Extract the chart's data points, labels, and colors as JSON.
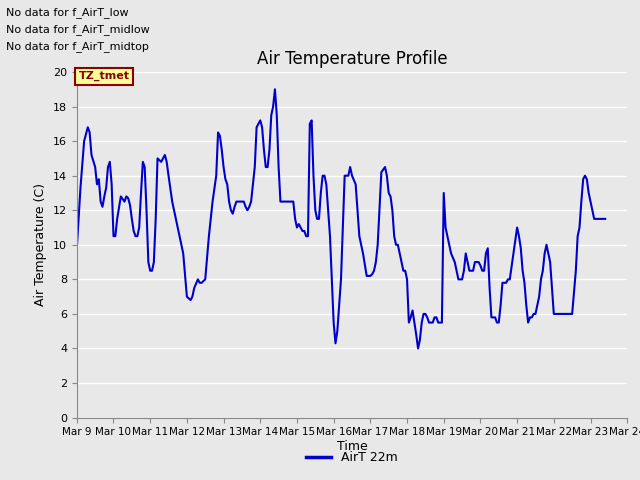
{
  "title": "Air Temperature Profile",
  "xlabel": "Time",
  "ylabel": "Air Temperature (C)",
  "ylim": [
    0,
    20
  ],
  "yticks": [
    0,
    2,
    4,
    6,
    8,
    10,
    12,
    14,
    16,
    18,
    20
  ],
  "line_color": "#0000CC",
  "line_width": 1.5,
  "background_color": "#E8E8E8",
  "plot_bg_color": "#E8E8E8",
  "annotations": [
    "No data for f_AirT_low",
    "No data for f_AirT_midlow",
    "No data for f_AirT_midtop"
  ],
  "legend_label": "AirT 22m",
  "tz_label": "TZ_tmet",
  "x_tick_labels": [
    "Mar 9",
    "Mar 10",
    "Mar 11",
    "Mar 12",
    "Mar 13",
    "Mar 14",
    "Mar 15",
    "Mar 16",
    "Mar 17",
    "Mar 18",
    "Mar 19",
    "Mar 20",
    "Mar 21",
    "Mar 22",
    "Mar 23",
    "Mar 24"
  ],
  "temperature_data": [
    [
      9.0,
      9.8
    ],
    [
      9.1,
      13.3
    ],
    [
      9.2,
      16.0
    ],
    [
      9.3,
      16.8
    ],
    [
      9.35,
      16.5
    ],
    [
      9.4,
      15.2
    ],
    [
      9.5,
      14.5
    ],
    [
      9.55,
      13.5
    ],
    [
      9.6,
      13.8
    ],
    [
      9.65,
      12.5
    ],
    [
      9.7,
      12.2
    ],
    [
      9.75,
      12.8
    ],
    [
      9.8,
      13.3
    ],
    [
      9.85,
      14.5
    ],
    [
      9.9,
      14.8
    ],
    [
      9.95,
      13.5
    ],
    [
      10.0,
      10.5
    ],
    [
      10.05,
      10.5
    ],
    [
      10.1,
      11.5
    ],
    [
      10.2,
      12.8
    ],
    [
      10.3,
      12.5
    ],
    [
      10.35,
      12.8
    ],
    [
      10.4,
      12.7
    ],
    [
      10.45,
      12.3
    ],
    [
      10.5,
      11.5
    ],
    [
      10.55,
      10.8
    ],
    [
      10.6,
      10.5
    ],
    [
      10.65,
      10.5
    ],
    [
      10.7,
      11.0
    ],
    [
      10.75,
      13.0
    ],
    [
      10.8,
      14.8
    ],
    [
      10.85,
      14.5
    ],
    [
      10.9,
      12.0
    ],
    [
      10.95,
      9.0
    ],
    [
      11.0,
      8.5
    ],
    [
      11.05,
      8.5
    ],
    [
      11.1,
      9.0
    ],
    [
      11.15,
      11.5
    ],
    [
      11.2,
      15.0
    ],
    [
      11.3,
      14.8
    ],
    [
      11.4,
      15.2
    ],
    [
      11.45,
      14.8
    ],
    [
      11.5,
      14.0
    ],
    [
      11.6,
      12.5
    ],
    [
      11.7,
      11.5
    ],
    [
      11.8,
      10.5
    ],
    [
      11.9,
      9.5
    ],
    [
      12.0,
      7.0
    ],
    [
      12.1,
      6.8
    ],
    [
      12.15,
      7.0
    ],
    [
      12.2,
      7.5
    ],
    [
      12.3,
      8.0
    ],
    [
      12.35,
      7.8
    ],
    [
      12.4,
      7.8
    ],
    [
      12.5,
      8.0
    ],
    [
      12.6,
      10.5
    ],
    [
      12.7,
      12.5
    ],
    [
      12.8,
      14.0
    ],
    [
      12.85,
      16.5
    ],
    [
      12.9,
      16.3
    ],
    [
      12.95,
      15.5
    ],
    [
      13.0,
      14.5
    ],
    [
      13.05,
      13.8
    ],
    [
      13.1,
      13.5
    ],
    [
      13.15,
      12.5
    ],
    [
      13.2,
      12.0
    ],
    [
      13.25,
      11.8
    ],
    [
      13.3,
      12.2
    ],
    [
      13.35,
      12.5
    ],
    [
      13.4,
      12.5
    ],
    [
      13.5,
      12.5
    ],
    [
      13.55,
      12.5
    ],
    [
      13.6,
      12.2
    ],
    [
      13.65,
      12.0
    ],
    [
      13.7,
      12.2
    ],
    [
      13.75,
      12.5
    ],
    [
      13.8,
      13.5
    ],
    [
      13.85,
      14.5
    ],
    [
      13.9,
      16.8
    ],
    [
      13.95,
      17.0
    ],
    [
      14.0,
      17.2
    ],
    [
      14.05,
      16.8
    ],
    [
      14.1,
      15.5
    ],
    [
      14.15,
      14.5
    ],
    [
      14.2,
      14.5
    ],
    [
      14.25,
      15.5
    ],
    [
      14.3,
      17.5
    ],
    [
      14.35,
      18.0
    ],
    [
      14.4,
      19.0
    ],
    [
      14.45,
      17.5
    ],
    [
      14.5,
      14.5
    ],
    [
      14.55,
      12.5
    ],
    [
      14.6,
      12.5
    ],
    [
      14.65,
      12.5
    ],
    [
      14.7,
      12.5
    ],
    [
      14.75,
      12.5
    ],
    [
      14.8,
      12.5
    ],
    [
      14.85,
      12.5
    ],
    [
      14.9,
      12.5
    ],
    [
      14.95,
      11.5
    ],
    [
      15.0,
      11.0
    ],
    [
      15.05,
      11.2
    ],
    [
      15.1,
      11.0
    ],
    [
      15.15,
      10.8
    ],
    [
      15.2,
      10.8
    ],
    [
      15.25,
      10.5
    ],
    [
      15.3,
      10.5
    ],
    [
      15.35,
      17.0
    ],
    [
      15.4,
      17.2
    ],
    [
      15.45,
      14.0
    ],
    [
      15.5,
      12.0
    ],
    [
      15.55,
      11.5
    ],
    [
      15.6,
      11.5
    ],
    [
      15.65,
      13.0
    ],
    [
      15.7,
      14.0
    ],
    [
      15.75,
      14.0
    ],
    [
      15.8,
      13.5
    ],
    [
      15.85,
      12.0
    ],
    [
      15.9,
      10.5
    ],
    [
      15.95,
      8.0
    ],
    [
      16.0,
      5.5
    ],
    [
      16.05,
      4.3
    ],
    [
      16.1,
      5.0
    ],
    [
      16.15,
      6.5
    ],
    [
      16.2,
      8.0
    ],
    [
      16.3,
      14.0
    ],
    [
      16.4,
      14.0
    ],
    [
      16.45,
      14.5
    ],
    [
      16.5,
      14.0
    ],
    [
      16.6,
      13.5
    ],
    [
      16.7,
      10.5
    ],
    [
      16.8,
      9.5
    ],
    [
      16.9,
      8.2
    ],
    [
      17.0,
      8.2
    ],
    [
      17.05,
      8.3
    ],
    [
      17.1,
      8.5
    ],
    [
      17.15,
      9.0
    ],
    [
      17.2,
      10.0
    ],
    [
      17.3,
      14.2
    ],
    [
      17.4,
      14.5
    ],
    [
      17.45,
      14.0
    ],
    [
      17.5,
      13.0
    ],
    [
      17.55,
      12.8
    ],
    [
      17.6,
      12.0
    ],
    [
      17.65,
      10.5
    ],
    [
      17.7,
      10.0
    ],
    [
      17.75,
      10.0
    ],
    [
      17.8,
      9.5
    ],
    [
      17.85,
      9.0
    ],
    [
      17.9,
      8.5
    ],
    [
      17.95,
      8.5
    ],
    [
      18.0,
      8.0
    ],
    [
      18.05,
      5.5
    ],
    [
      18.1,
      5.8
    ],
    [
      18.15,
      6.2
    ],
    [
      18.2,
      5.5
    ],
    [
      18.25,
      4.8
    ],
    [
      18.3,
      4.0
    ],
    [
      18.35,
      4.5
    ],
    [
      18.4,
      5.5
    ],
    [
      18.45,
      6.0
    ],
    [
      18.5,
      6.0
    ],
    [
      18.55,
      5.8
    ],
    [
      18.6,
      5.5
    ],
    [
      18.65,
      5.5
    ],
    [
      18.7,
      5.5
    ],
    [
      18.75,
      5.8
    ],
    [
      18.8,
      5.8
    ],
    [
      18.85,
      5.5
    ],
    [
      18.9,
      5.5
    ],
    [
      18.95,
      5.5
    ],
    [
      19.0,
      13.0
    ],
    [
      19.05,
      11.0
    ],
    [
      19.1,
      10.5
    ],
    [
      19.2,
      9.5
    ],
    [
      19.3,
      9.0
    ],
    [
      19.35,
      8.5
    ],
    [
      19.4,
      8.0
    ],
    [
      19.45,
      8.0
    ],
    [
      19.5,
      8.0
    ],
    [
      19.55,
      8.5
    ],
    [
      19.6,
      9.5
    ],
    [
      19.65,
      9.0
    ],
    [
      19.7,
      8.5
    ],
    [
      19.75,
      8.5
    ],
    [
      19.8,
      8.5
    ],
    [
      19.85,
      9.0
    ],
    [
      19.9,
      9.0
    ],
    [
      19.95,
      9.0
    ],
    [
      20.0,
      8.8
    ],
    [
      20.05,
      8.5
    ],
    [
      20.1,
      8.5
    ],
    [
      20.15,
      9.5
    ],
    [
      20.2,
      9.8
    ],
    [
      20.25,
      7.5
    ],
    [
      20.3,
      5.8
    ],
    [
      20.35,
      5.8
    ],
    [
      20.4,
      5.8
    ],
    [
      20.45,
      5.5
    ],
    [
      20.5,
      5.5
    ],
    [
      20.55,
      6.5
    ],
    [
      20.6,
      7.8
    ],
    [
      20.65,
      7.8
    ],
    [
      20.7,
      7.8
    ],
    [
      20.75,
      8.0
    ],
    [
      20.8,
      8.0
    ],
    [
      21.0,
      11.0
    ],
    [
      21.05,
      10.5
    ],
    [
      21.1,
      9.8
    ],
    [
      21.15,
      8.5
    ],
    [
      21.2,
      7.8
    ],
    [
      21.25,
      6.5
    ],
    [
      21.3,
      5.5
    ],
    [
      21.35,
      5.8
    ],
    [
      21.4,
      5.8
    ],
    [
      21.45,
      6.0
    ],
    [
      21.5,
      6.0
    ],
    [
      21.55,
      6.5
    ],
    [
      21.6,
      7.0
    ],
    [
      21.65,
      8.0
    ],
    [
      21.7,
      8.5
    ],
    [
      21.75,
      9.5
    ],
    [
      21.8,
      10.0
    ],
    [
      21.85,
      9.5
    ],
    [
      21.9,
      9.0
    ],
    [
      22.0,
      6.0
    ],
    [
      22.1,
      6.0
    ],
    [
      22.2,
      6.0
    ],
    [
      22.3,
      6.0
    ],
    [
      22.4,
      6.0
    ],
    [
      22.5,
      6.0
    ],
    [
      22.6,
      8.5
    ],
    [
      22.65,
      10.5
    ],
    [
      22.7,
      11.0
    ],
    [
      22.75,
      12.5
    ],
    [
      22.8,
      13.8
    ],
    [
      22.85,
      14.0
    ],
    [
      22.9,
      13.8
    ],
    [
      22.95,
      13.0
    ],
    [
      23.0,
      12.5
    ],
    [
      23.1,
      11.5
    ],
    [
      23.2,
      11.5
    ],
    [
      23.3,
      11.5
    ],
    [
      23.4,
      11.5
    ]
  ]
}
